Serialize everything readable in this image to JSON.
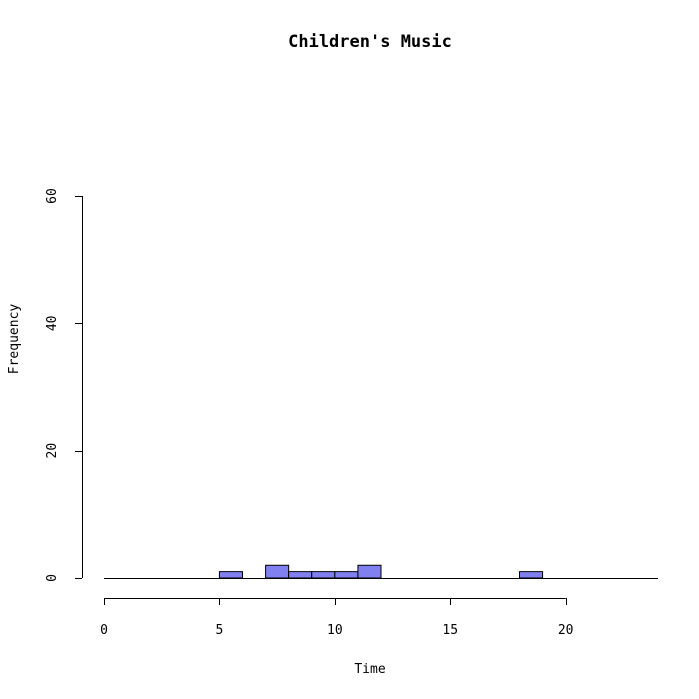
{
  "chart_data": {
    "type": "bar",
    "title": "Children's Music",
    "xlabel": "Time",
    "ylabel": "Frequency",
    "xlim": [
      0,
      24
    ],
    "ylim": [
      0,
      60
    ],
    "x_ticks": [
      0,
      5,
      10,
      15,
      20
    ],
    "y_ticks": [
      0,
      20,
      40,
      60
    ],
    "bin_width": 1,
    "bins": [
      {
        "start": 5,
        "end": 6,
        "count": 1
      },
      {
        "start": 7,
        "end": 8,
        "count": 2
      },
      {
        "start": 8,
        "end": 9,
        "count": 1
      },
      {
        "start": 9,
        "end": 10,
        "count": 1
      },
      {
        "start": 10,
        "end": 11,
        "count": 1
      },
      {
        "start": 11,
        "end": 12,
        "count": 2
      },
      {
        "start": 18,
        "end": 19,
        "count": 1
      }
    ],
    "bar_color": "#8080f0",
    "grid": false
  }
}
